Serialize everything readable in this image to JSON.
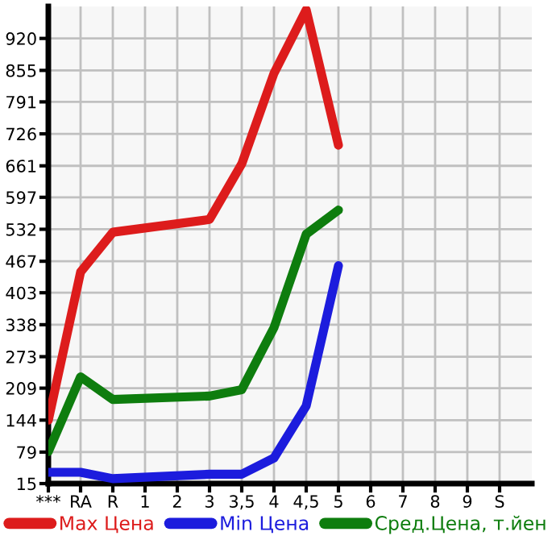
{
  "chart_data": {
    "type": "line",
    "categories": [
      "***",
      "RA",
      "R",
      "1",
      "2",
      "3",
      "3,5",
      "4",
      "4,5",
      "5",
      "6",
      "7",
      "8",
      "9",
      "S"
    ],
    "series": [
      {
        "name": "Max Цена",
        "color": "#dd1c1c",
        "values": [
          144,
          445,
          526,
          null,
          null,
          552,
          665,
          849,
          978,
          703,
          null,
          null,
          null,
          null,
          null
        ]
      },
      {
        "name": "Min Цена",
        "color": "#1c1cdd",
        "values": [
          38,
          38,
          25,
          null,
          null,
          34,
          34,
          67,
          173,
          458,
          null,
          null,
          null,
          null,
          null
        ]
      },
      {
        "name": "Сред.Цена, т.йен",
        "color": "#0e7d0e",
        "values": [
          80,
          232,
          186,
          null,
          null,
          193,
          206,
          332,
          522,
          571,
          null,
          null,
          null,
          null,
          null
        ]
      }
    ],
    "ylim": [
      15,
      985
    ],
    "yticks": [
      15,
      79,
      144,
      209,
      273,
      338,
      403,
      467,
      532,
      597,
      661,
      726,
      791,
      855,
      920
    ],
    "grid": true,
    "legend": "bottom",
    "marker": "none",
    "line_style": "solid"
  }
}
